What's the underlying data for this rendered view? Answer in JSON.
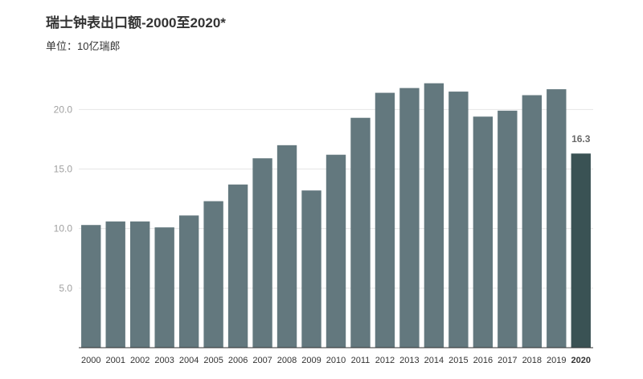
{
  "chart_data": {
    "type": "bar",
    "title": "瑞士钟表出口额-2000至2020*",
    "subtitle": "单位：10亿瑞郎",
    "categories": [
      "2000",
      "2001",
      "2002",
      "2003",
      "2004",
      "2005",
      "2006",
      "2007",
      "2008",
      "2009",
      "2010",
      "2011",
      "2012",
      "2013",
      "2014",
      "2015",
      "2016",
      "2017",
      "2018",
      "2019",
      "2020"
    ],
    "values": [
      10.3,
      10.6,
      10.6,
      10.1,
      11.1,
      12.3,
      13.7,
      15.9,
      17.0,
      13.2,
      16.2,
      19.3,
      21.4,
      21.8,
      22.2,
      21.5,
      19.4,
      19.9,
      21.2,
      21.7,
      16.3
    ],
    "ylim": [
      0,
      24
    ],
    "yticks": [
      "5.0",
      "10.0",
      "15.0",
      "20.0"
    ],
    "grid": true,
    "highlight_category": "2020",
    "data_labels": [
      {
        "category": "2020",
        "text": "16.3"
      }
    ],
    "colors": {
      "bar": "#63787e",
      "highlight": "#3a5254",
      "grid": "#e6e6e6",
      "axis": "#333333"
    }
  }
}
